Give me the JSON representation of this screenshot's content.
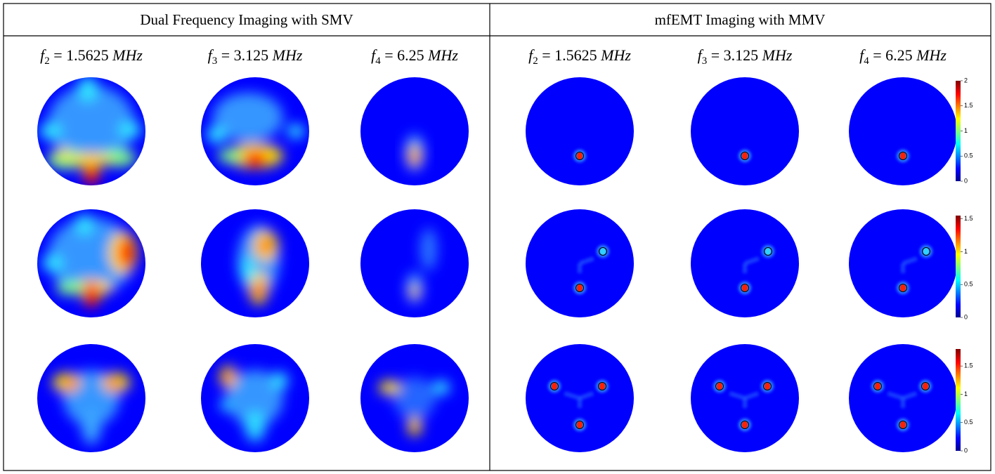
{
  "panels": [
    {
      "title": "Dual Frequency Imaging with SMV",
      "columns": [
        {
          "symbol": "f",
          "index": "2",
          "equation": " = 1.5625 ",
          "unit": "MHz"
        },
        {
          "symbol": "f",
          "index": "3",
          "equation": " = 3.125 ",
          "unit": "MHz"
        },
        {
          "symbol": "f",
          "index": "4",
          "equation": " = 6.25 ",
          "unit": "MHz"
        }
      ]
    },
    {
      "title": "mfEMT Imaging with MMV",
      "columns": [
        {
          "symbol": "f",
          "index": "2",
          "equation": " = 1.5625 ",
          "unit": "MHz"
        },
        {
          "symbol": "f",
          "index": "3",
          "equation": " = 3.125 ",
          "unit": "MHz"
        },
        {
          "symbol": "f",
          "index": "4",
          "equation": " = 6.25 ",
          "unit": "MHz"
        }
      ]
    }
  ],
  "colorbars": [
    {
      "lim": [
        0,
        2
      ],
      "ticks": [
        0,
        0.5,
        1,
        1.5,
        2
      ]
    },
    {
      "lim": [
        0,
        1.55
      ],
      "ticks": [
        0,
        0.5,
        1,
        1.5
      ]
    },
    {
      "lim": [
        0,
        1.8
      ],
      "ticks": [
        0,
        0.5,
        1,
        1.5
      ]
    }
  ]
}
